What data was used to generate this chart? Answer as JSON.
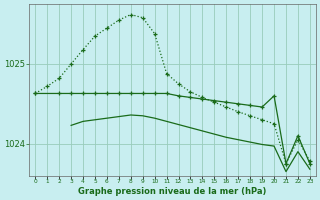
{
  "xlabel": "Graphe pression niveau de la mer (hPa)",
  "x_ticks": [
    0,
    1,
    2,
    3,
    4,
    5,
    6,
    7,
    8,
    9,
    10,
    11,
    12,
    13,
    14,
    15,
    16,
    17,
    18,
    19,
    20,
    21,
    22,
    23
  ],
  "ylim": [
    1023.6,
    1025.75
  ],
  "yticks": [
    1024,
    1025
  ],
  "background_color": "#c8eef0",
  "grid_color": "#99ccbb",
  "line_color": "#1a6b1a",
  "series_peak": {
    "x": [
      0,
      1,
      2,
      3,
      4,
      5,
      6,
      7,
      8,
      9,
      10,
      11,
      12,
      13,
      14,
      15,
      16,
      17,
      18,
      19,
      20,
      21,
      22,
      23
    ],
    "y": [
      1024.63,
      1024.72,
      1024.82,
      1025.0,
      1025.18,
      1025.35,
      1025.45,
      1025.55,
      1025.62,
      1025.58,
      1025.38,
      1024.88,
      1024.75,
      1024.65,
      1024.58,
      1024.52,
      1024.46,
      1024.4,
      1024.35,
      1024.3,
      1024.25,
      1023.75,
      1024.05,
      1023.78
    ]
  },
  "series_flat_upper": {
    "x": [
      0,
      2,
      3,
      4,
      5,
      6,
      7,
      8,
      9,
      10,
      11,
      12,
      13,
      14,
      15,
      16,
      17,
      18,
      19,
      20,
      21,
      22,
      23
    ],
    "y": [
      1024.63,
      1024.63,
      1024.63,
      1024.63,
      1024.63,
      1024.63,
      1024.63,
      1024.63,
      1024.63,
      1024.63,
      1024.63,
      1024.6,
      1024.58,
      1024.56,
      1024.54,
      1024.52,
      1024.5,
      1024.48,
      1024.46,
      1024.6,
      1023.75,
      1024.1,
      1023.75
    ]
  },
  "series_lower": {
    "x": [
      3,
      4,
      5,
      6,
      7,
      8,
      9,
      10,
      11,
      12,
      13,
      14,
      15,
      16,
      17,
      18,
      19,
      20,
      21,
      22,
      23
    ],
    "y": [
      1024.23,
      1024.28,
      1024.3,
      1024.32,
      1024.34,
      1024.36,
      1024.35,
      1024.32,
      1024.28,
      1024.24,
      1024.2,
      1024.16,
      1024.12,
      1024.08,
      1024.05,
      1024.02,
      1023.99,
      1023.97,
      1023.65,
      1023.9,
      1023.68
    ]
  }
}
